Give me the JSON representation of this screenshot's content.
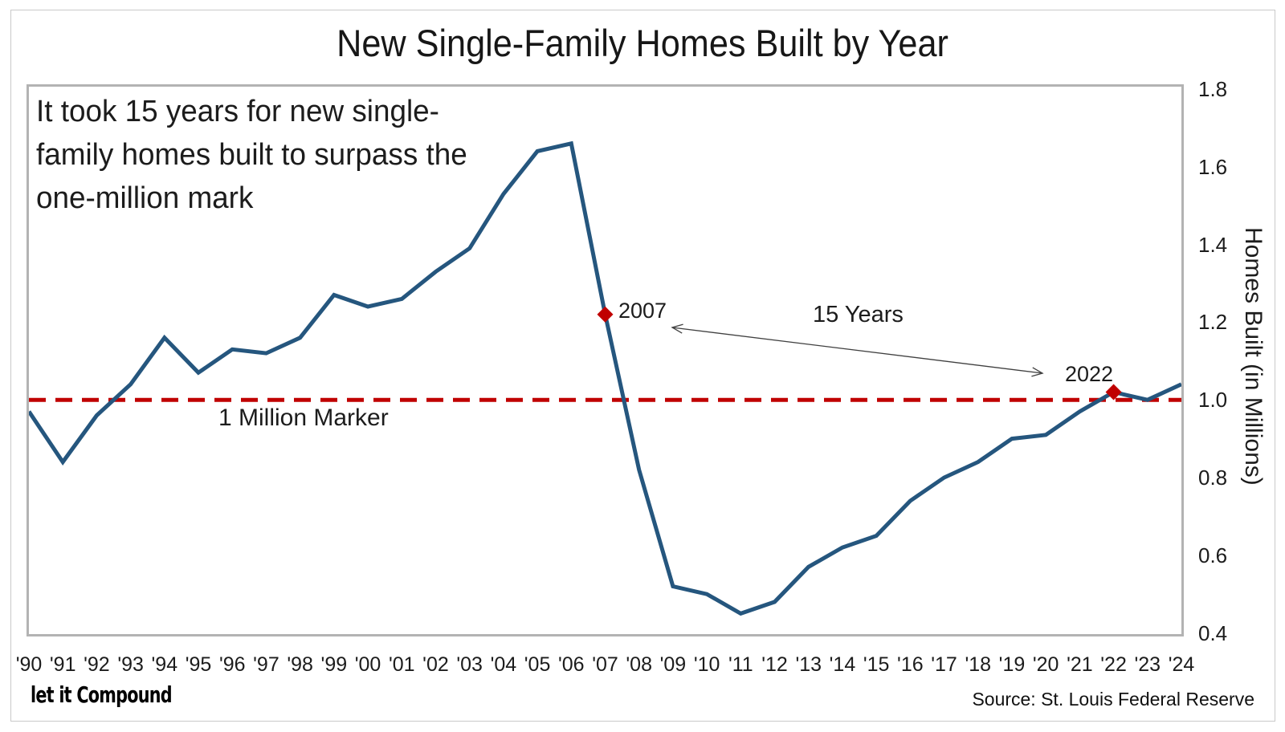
{
  "figure": {
    "annotation_lines": [
      "It took 15 years for new single-",
      "family homes built to surpass the",
      "one-million mark"
    ],
    "callout_2007": "2007",
    "callout_2022": "2022",
    "arrow_label": "15 Years",
    "reference_label": "1 Million Marker",
    "logo": "let it Compound",
    "source": "Source: St. Louis Federal Reserve"
  },
  "colors": {
    "line": "#25567E",
    "marker": "#C00000",
    "reference": "#C00000",
    "arrow": "#404040",
    "plot_border": "#B3B3B3",
    "text": "#1C1C1C"
  },
  "chart_data": {
    "type": "line",
    "title": "New Single-Family Homes Built by Year",
    "ylabel": "Homes Built (in Millions)",
    "xlabel": "",
    "grid": false,
    "legend": false,
    "ylim": [
      0.4,
      1.8
    ],
    "y_ticks": [
      1.8,
      1.6,
      1.4,
      1.2,
      1.0,
      0.8,
      0.6,
      0.4
    ],
    "x_labels": [
      "'90",
      "'91",
      "'92",
      "'93",
      "'94",
      "'95",
      "'96",
      "'97",
      "'98",
      "'99",
      "'00",
      "'01",
      "'02",
      "'03",
      "'04",
      "'05",
      "'06",
      "'07",
      "'08",
      "'09",
      "'10",
      "'11",
      "'12",
      "'13",
      "'14",
      "'15",
      "'16",
      "'17",
      "'18",
      "'19",
      "'20",
      "'21",
      "'22",
      "'23",
      "'24"
    ],
    "years": [
      1990,
      1991,
      1992,
      1993,
      1994,
      1995,
      1996,
      1997,
      1998,
      1999,
      2000,
      2001,
      2002,
      2003,
      2004,
      2005,
      2006,
      2007,
      2008,
      2009,
      2010,
      2011,
      2012,
      2013,
      2014,
      2015,
      2016,
      2017,
      2018,
      2019,
      2020,
      2021,
      2022,
      2023,
      2024
    ],
    "values": [
      0.97,
      0.84,
      0.96,
      1.04,
      1.16,
      1.07,
      1.13,
      1.12,
      1.16,
      1.27,
      1.24,
      1.26,
      1.33,
      1.39,
      1.53,
      1.64,
      1.66,
      1.22,
      0.82,
      0.52,
      0.5,
      0.45,
      0.48,
      0.57,
      0.62,
      0.65,
      0.74,
      0.8,
      0.84,
      0.9,
      0.91,
      0.97,
      1.02,
      1.0,
      1.04
    ],
    "reference_line": {
      "value": 1.0,
      "label": "1 Million Marker"
    },
    "highlight_points": [
      {
        "year": 2007,
        "value": 1.22
      },
      {
        "year": 2022,
        "value": 1.02
      }
    ]
  }
}
